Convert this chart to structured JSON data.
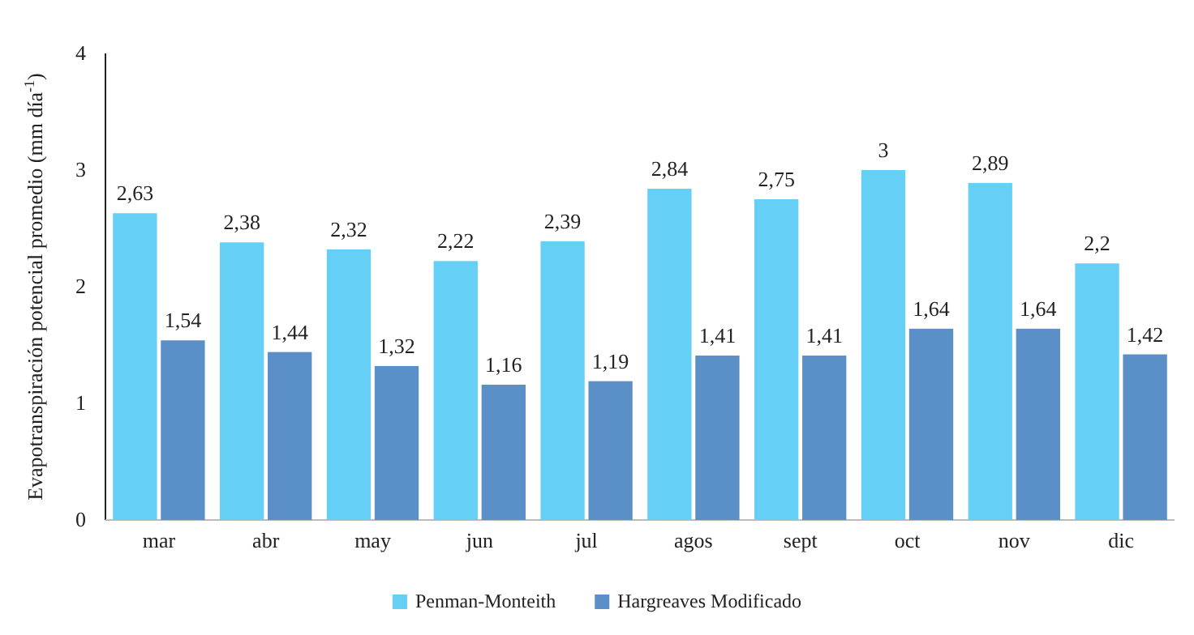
{
  "chart_data": {
    "type": "bar",
    "ylabel": "Evapotranspiración  potencial promedio (mm día$^{-1}$)",
    "categories": [
      "mar",
      "abr",
      "may",
      "jun",
      "jul",
      "agos",
      "sept",
      "oct",
      "nov",
      "dic"
    ],
    "series": [
      {
        "name": "Penman-Monteith",
        "color": "#66cff5",
        "values": [
          2.63,
          2.38,
          2.32,
          2.22,
          2.39,
          2.84,
          2.75,
          3,
          2.89,
          2.2
        ],
        "value_labels": [
          "2,63",
          "2,38",
          "2,32",
          "2,22",
          "2,39",
          "2,84",
          "2,75",
          "3",
          "2,89",
          "2,2"
        ]
      },
      {
        "name": "Hargreaves Modificado",
        "color": "#5b8fc7",
        "values": [
          1.54,
          1.44,
          1.32,
          1.16,
          1.19,
          1.41,
          1.41,
          1.64,
          1.64,
          1.42
        ],
        "value_labels": [
          "1,54",
          "1,44",
          "1,32",
          "1,16",
          "1,19",
          "1,41",
          "1,41",
          "1,64",
          "1,64",
          "1,42"
        ]
      }
    ],
    "ylim": [
      0,
      4
    ],
    "yticks": [
      0,
      1,
      2,
      3,
      4
    ],
    "grid": false,
    "legend": "bottom"
  }
}
